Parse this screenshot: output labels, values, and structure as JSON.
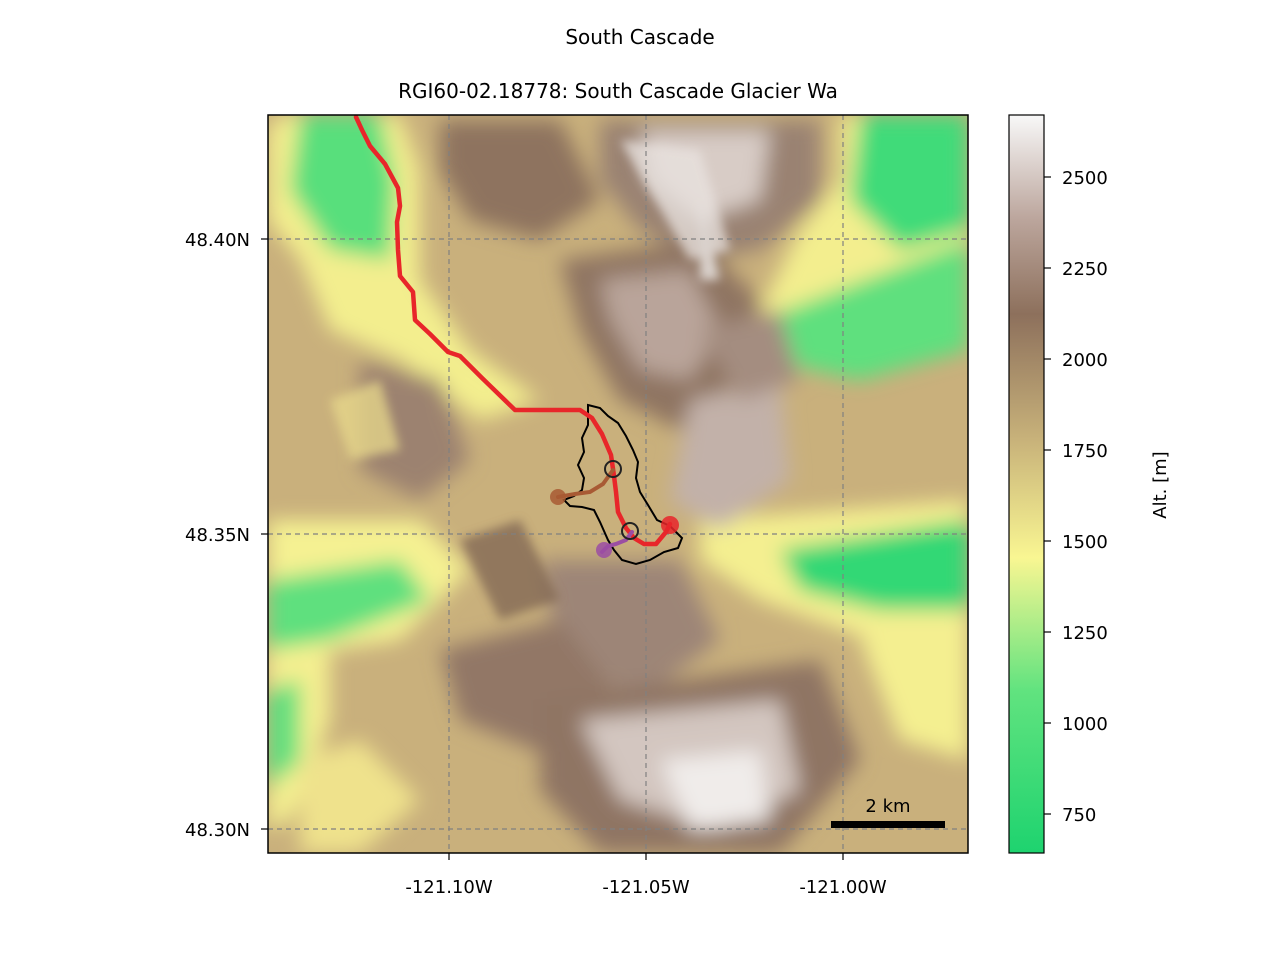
{
  "figure": {
    "suptitle": "South Cascade",
    "title": "RGI60-02.18778: South Cascade Glacier Wa"
  },
  "map": {
    "lon_ticks": [
      "-121.10W",
      "-121.05W",
      "-121.00W"
    ],
    "lat_ticks": [
      "48.40N",
      "48.35N",
      "48.30N"
    ],
    "gridlines": "dashed",
    "scalebar_label": "2 km"
  },
  "colorbar": {
    "label": "Alt. [m]",
    "ticks": [
      "2500",
      "2250",
      "2000",
      "1750",
      "1500",
      "1250",
      "1000",
      "750"
    ],
    "colors": [
      "#1ed36f",
      "#61e37f",
      "#f9f692",
      "#c8b27a",
      "#8d705c",
      "#bca69d",
      "#f6f4f3"
    ]
  },
  "legend_colors": {
    "main_flowline": "#e8262a",
    "tributary_1": "#a85a34",
    "tributary_2": "#9b4ea3",
    "outline": "#000000"
  }
}
